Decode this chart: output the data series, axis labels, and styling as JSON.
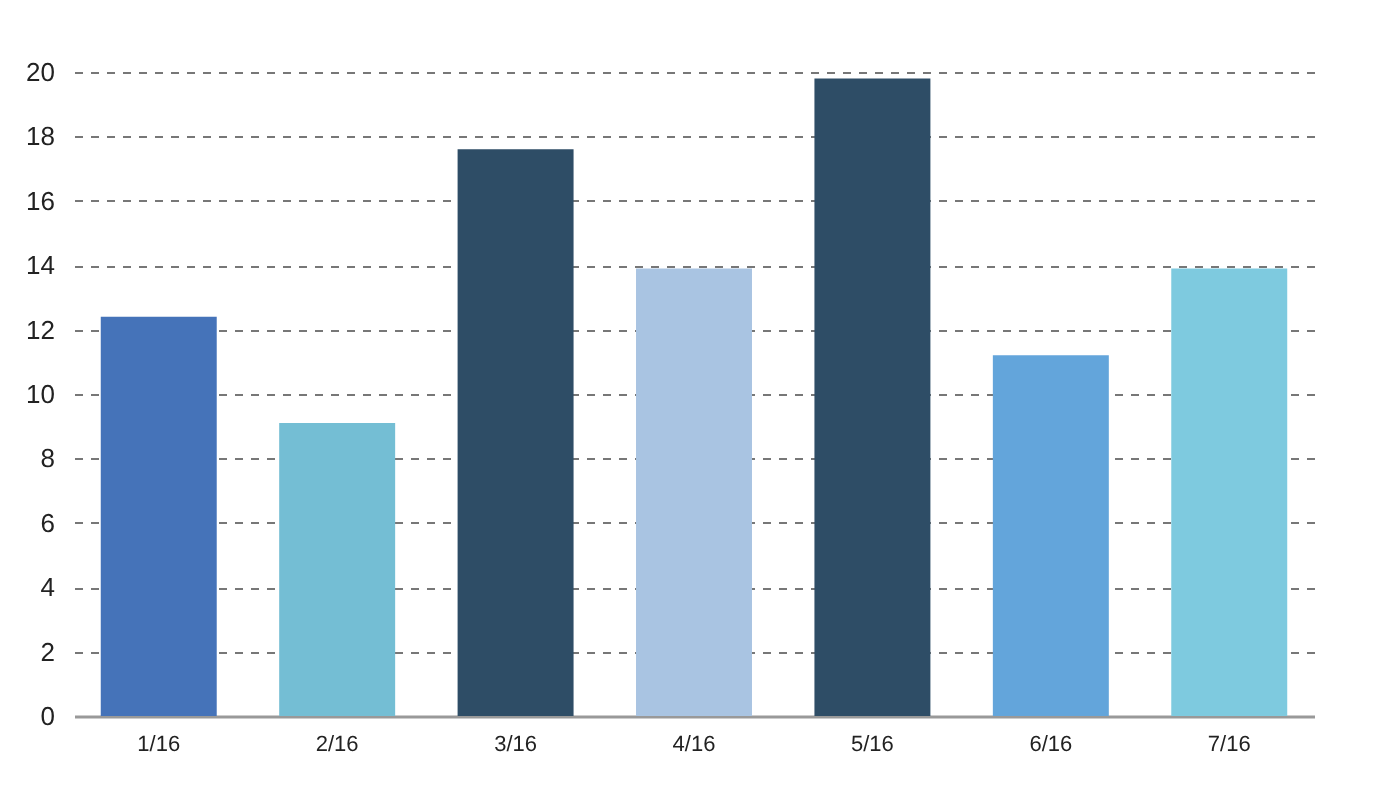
{
  "chart_data": {
    "type": "bar",
    "categories": [
      "1/16",
      "2/16",
      "3/16",
      "4/16",
      "5/16",
      "6/16",
      "7/16"
    ],
    "values": [
      12.4,
      9.1,
      17.6,
      13.9,
      19.8,
      11.2,
      13.9
    ],
    "colors": [
      "#4573b9",
      "#74bed4",
      "#2e4d66",
      "#a9c4e2",
      "#2e4d66",
      "#63a5db",
      "#7ecadf"
    ],
    "ylim": [
      0,
      20
    ],
    "yticks": [
      0,
      2,
      4,
      6,
      8,
      10,
      12,
      14,
      16,
      18,
      20
    ],
    "grid": "y"
  }
}
